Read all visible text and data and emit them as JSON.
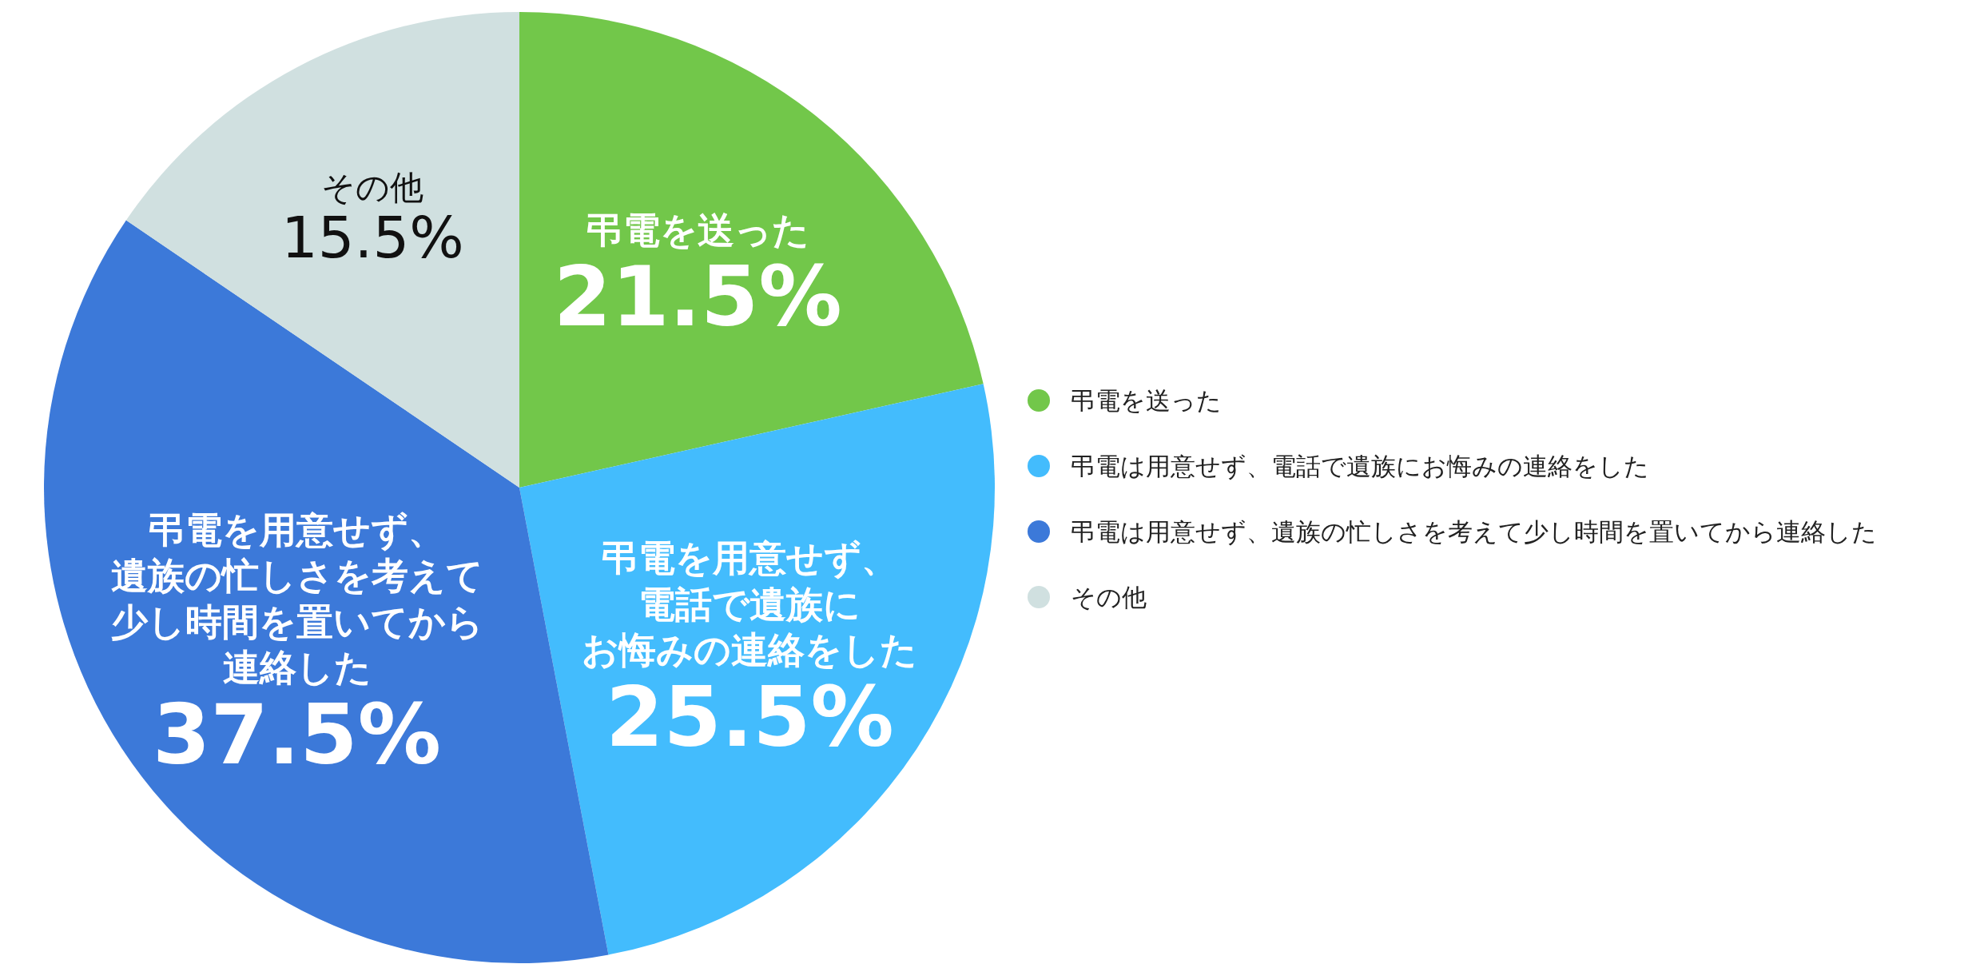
{
  "chart_data": {
    "type": "pie",
    "categories": [
      "弔電を送った",
      "弔電は用意せず、電話で遺族にお悔みの連絡をした",
      "弔電は用意せず、遺族の忙しさを考えて少し時間を置いてから連絡した",
      "その他"
    ],
    "values": [
      21.5,
      25.5,
      37.5,
      15.5
    ],
    "colors": [
      "#72c74a",
      "#43bcfd",
      "#3c79d9",
      "#d0e0e0"
    ],
    "value_labels": [
      "21.5%",
      "25.5%",
      "37.5%",
      "15.5%"
    ],
    "annotations": [
      {
        "text": "弔電を送った",
        "x": "弔電を送った"
      },
      {
        "text": "弔電を用意せず、",
        "x": "弔電は用意せず、電話で遺族にお悔みの連絡をした"
      },
      {
        "text": "電話で遺族に",
        "x": "弔電は用意せず、電話で遺族にお悔みの連絡をした"
      },
      {
        "text": "お悔みの連絡をした",
        "x": "弔電は用意せず、電話で遺族にお悔みの連絡をした"
      },
      {
        "text": "弔電を用意せず、",
        "x": "弔電は用意せず、遺族の忙しさを考えて少し時間を置いてから連絡した"
      },
      {
        "text": "遺族の忙しさを考えて",
        "x": "弔電は用意せず、遺族の忙しさを考えて少し時間を置いてから連絡した"
      },
      {
        "text": "少し時間を置いてから",
        "x": "弔電は用意せず、遺族の忙しさを考えて少し時間を置いてから連絡した"
      },
      {
        "text": "連絡した",
        "x": "弔電は用意せず、遺族の忙しさを考えて少し時間を置いてから連絡した"
      },
      {
        "text": "その他",
        "x": "その他"
      }
    ],
    "legend": "right"
  }
}
